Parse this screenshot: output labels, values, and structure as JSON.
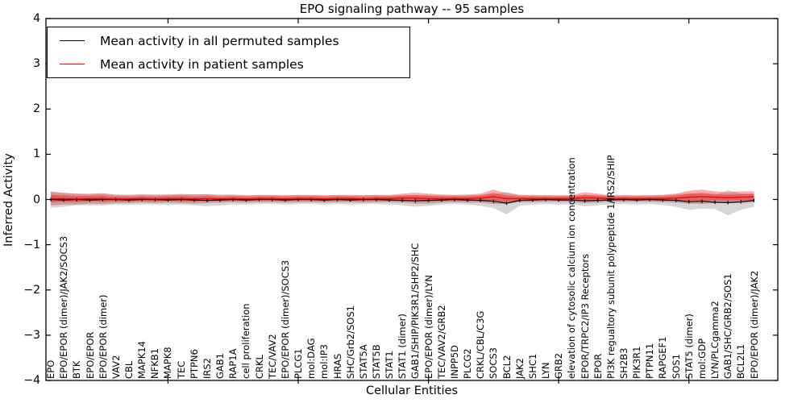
{
  "chart_data": {
    "type": "line",
    "title": "EPO signaling pathway -- 95 samples",
    "xlabel": "Cellular Entities",
    "ylabel": "Inferred Activity",
    "ylim": [
      -4,
      4
    ],
    "grid": false,
    "legend_position": "upper left",
    "categories": [
      "EPO",
      "EPO/EPOR (dimer)/JAK2/SOCS3",
      "BTK",
      "EPO/EPOR",
      "EPO/EPOR (dimer)",
      "VAV2",
      "CBL",
      "MAPK14",
      "NFKB1",
      "MAPK8",
      "TEC",
      "PTPN6",
      "IRS2",
      "GAB1",
      "RAP1A",
      "cell proliferation",
      "CRKL",
      "TEC/VAV2",
      "EPO/EPOR (dimer)/SOCS3",
      "PLCG1",
      "mol:DAG",
      "mol:IP3",
      "HRAS",
      "SHC/Grb2/SOS1",
      "STAT5A",
      "STAT5B",
      "STAT1",
      "STAT1 (dimer)",
      "GAB1/SHIP/PIK3R1/SHP2/SHC",
      "EPO/EPOR (dimer)/LYN",
      "TEC/VAV2/GRB2",
      "INPP5D",
      "PLCG2",
      "CRKL/CBL/C3G",
      "SOCS3",
      "BCL2",
      "JAK2",
      "SHC1",
      "LYN",
      "GRB2",
      "elevation of cytosolic calcium ion concentration",
      "EPOR/TRPC2/IP3 Receptors",
      "EPOR",
      "PI3K regualtory subunit polypeptide 1/IRS2/SHIP",
      "SH2B3",
      "PIK3R1",
      "PTPN11",
      "RAPGEF1",
      "SOS1",
      "STAT5 (dimer)",
      "mol:GDP",
      "LYN/PLCgamma2",
      "GAB1/SHC/GRB2/SOS1",
      "BCL2L1",
      "EPO/EPOR (dimer)/JAK2"
    ],
    "series": [
      {
        "name": "Mean activity in all permuted samples",
        "color": "#000000",
        "band_color": "#999999",
        "values": [
          0,
          -0.01,
          0,
          -0.01,
          0,
          0,
          -0.01,
          0,
          0,
          -0.01,
          0,
          -0.01,
          -0.02,
          -0.01,
          0,
          -0.01,
          0,
          0,
          -0.01,
          0,
          0,
          -0.01,
          0,
          -0.01,
          0,
          0,
          -0.01,
          -0.02,
          -0.03,
          -0.02,
          -0.01,
          0,
          -0.01,
          -0.02,
          -0.04,
          -0.08,
          -0.02,
          -0.01,
          0,
          -0.01,
          -0.01,
          -0.03,
          -0.02,
          -0.01,
          0,
          -0.01,
          0,
          -0.01,
          -0.02,
          -0.05,
          -0.04,
          -0.06,
          -0.07,
          -0.05,
          -0.02
        ],
        "band": [
          0.18,
          0.15,
          0.13,
          0.12,
          0.13,
          0.11,
          0.11,
          0.11,
          0.11,
          0.11,
          0.11,
          0.12,
          0.13,
          0.12,
          0.11,
          0.1,
          0.1,
          0.1,
          0.1,
          0.1,
          0.1,
          0.1,
          0.1,
          0.1,
          0.1,
          0.1,
          0.1,
          0.11,
          0.13,
          0.12,
          0.1,
          0.1,
          0.1,
          0.12,
          0.15,
          0.25,
          0.12,
          0.1,
          0.1,
          0.1,
          0.1,
          0.12,
          0.11,
          0.1,
          0.1,
          0.1,
          0.1,
          0.11,
          0.14,
          0.18,
          0.16,
          0.15,
          0.28,
          0.18,
          0.14
        ]
      },
      {
        "name": "Mean activity in patient samples",
        "color": "#ff0000",
        "band_color": "#e03030",
        "values": [
          0.02,
          0.02,
          0.01,
          0.02,
          0.02,
          0.01,
          0.01,
          0.02,
          0.01,
          0.02,
          0.02,
          0.01,
          0.02,
          0.01,
          0.02,
          0.01,
          0.02,
          0.02,
          0.01,
          0.02,
          0.02,
          0.01,
          0.02,
          0.02,
          0.01,
          0.02,
          0.02,
          0.03,
          0.03,
          0.02,
          0.02,
          0.02,
          0.02,
          0.03,
          0.06,
          0.02,
          0.02,
          0.02,
          0.02,
          0.02,
          0.02,
          0.04,
          0.03,
          0.02,
          0.02,
          0.02,
          0.02,
          0.02,
          0.03,
          0.05,
          0.06,
          0.05,
          0.04,
          0.05,
          0.06
        ],
        "band": [
          0.15,
          0.13,
          0.12,
          0.11,
          0.12,
          0.09,
          0.09,
          0.09,
          0.09,
          0.09,
          0.1,
          0.1,
          0.1,
          0.08,
          0.08,
          0.08,
          0.08,
          0.08,
          0.08,
          0.08,
          0.08,
          0.08,
          0.08,
          0.08,
          0.08,
          0.08,
          0.08,
          0.1,
          0.12,
          0.11,
          0.09,
          0.08,
          0.09,
          0.1,
          0.16,
          0.12,
          0.08,
          0.08,
          0.07,
          0.07,
          0.08,
          0.12,
          0.1,
          0.07,
          0.07,
          0.07,
          0.07,
          0.08,
          0.1,
          0.14,
          0.16,
          0.13,
          0.12,
          0.13,
          0.12
        ]
      }
    ]
  },
  "axes": {
    "y_tick_labels": [
      "4",
      "3",
      "2",
      "1",
      "0",
      "−1",
      "−2",
      "−3",
      "−4"
    ],
    "y_tick_values": [
      4,
      3,
      2,
      1,
      0,
      -1,
      -2,
      -3,
      -4
    ],
    "x_major_tick_positions": [
      10,
      20,
      30,
      40,
      50
    ]
  },
  "legend": {
    "entries": [
      {
        "label": "Mean activity in all permuted samples",
        "color": "#000000"
      },
      {
        "label": "Mean activity in patient samples",
        "color": "#ff0000"
      }
    ]
  }
}
